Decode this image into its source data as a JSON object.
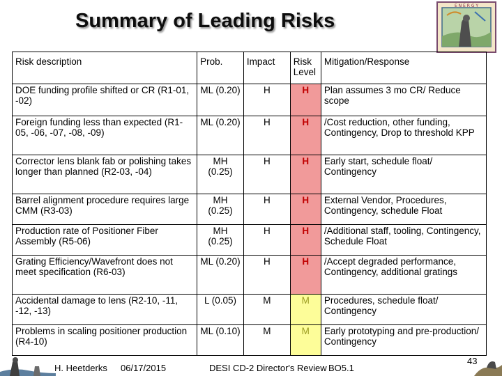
{
  "slide": {
    "title": "Summary of Leading Risks",
    "page_number": "43"
  },
  "table": {
    "headers": {
      "description": "Risk description",
      "probability": "Prob.",
      "impact": "Impact",
      "level": "Risk Level",
      "mitigation": "Mitigation/Response"
    },
    "rows": [
      {
        "description": "DOE funding profile shifted or CR (R1-01, -02)",
        "probability": "ML (0.20)",
        "impact": "H",
        "level": "H",
        "mitigation": "Plan assumes 3 mo CR/ Reduce scope"
      },
      {
        "description": "Foreign funding less than expected (R1-05, -06, -07, -08, -09)",
        "probability": "ML (0.20)",
        "impact": "H",
        "level": "H",
        "mitigation": "/Cost reduction, other funding, Contingency, Drop to threshold KPP"
      },
      {
        "description": "Corrector lens blank fab or polishing takes longer than planned (R2-03, -04)",
        "probability": "MH (0.25)",
        "impact": "H",
        "level": "H",
        "mitigation": "Early start, schedule float/ Contingency"
      },
      {
        "description": "Barrel alignment procedure requires large CMM (R3-03)",
        "probability": "MH (0.25)",
        "impact": "H",
        "level": "H",
        "mitigation": "External Vendor, Procedures, Contingency, schedule Float"
      },
      {
        "description": "Production rate of Positioner Fiber Assembly (R5-06)",
        "probability": "MH (0.25)",
        "impact": "H",
        "level": "H",
        "mitigation": "/Additional staff, tooling, Contingency, Schedule Float"
      },
      {
        "description": "Grating Efficiency/Wavefront does not meet specification (R6-03)",
        "probability": "ML (0.20)",
        "impact": "H",
        "level": "H",
        "mitigation": "/Accept degraded performance, Contingency, additional gratings"
      },
      {
        "description": "Accidental damage to lens (R2-10, -11, -12, -13)",
        "probability": "L (0.05)",
        "impact": "M",
        "level": "M",
        "mitigation": "Procedures, schedule float/ Contingency"
      },
      {
        "description": "Problems in scaling positioner production (R4-10)",
        "probability": "ML (0.10)",
        "impact": "M",
        "level": "M",
        "mitigation": "Early prototyping and pre-production/ Contingency"
      }
    ]
  },
  "footer": {
    "author": "H. Heetderks",
    "date": "06/17/2015",
    "event": "DESI CD-2 Director's Review",
    "section": "BO5.1"
  },
  "logo": {
    "lettering": "ENERGY SCIENCE LAB"
  },
  "colors": {
    "high_fill": "#f19a9a",
    "high_text": "#c00000",
    "medium_fill": "#fdfd99",
    "medium_text": "#9b9b20"
  }
}
